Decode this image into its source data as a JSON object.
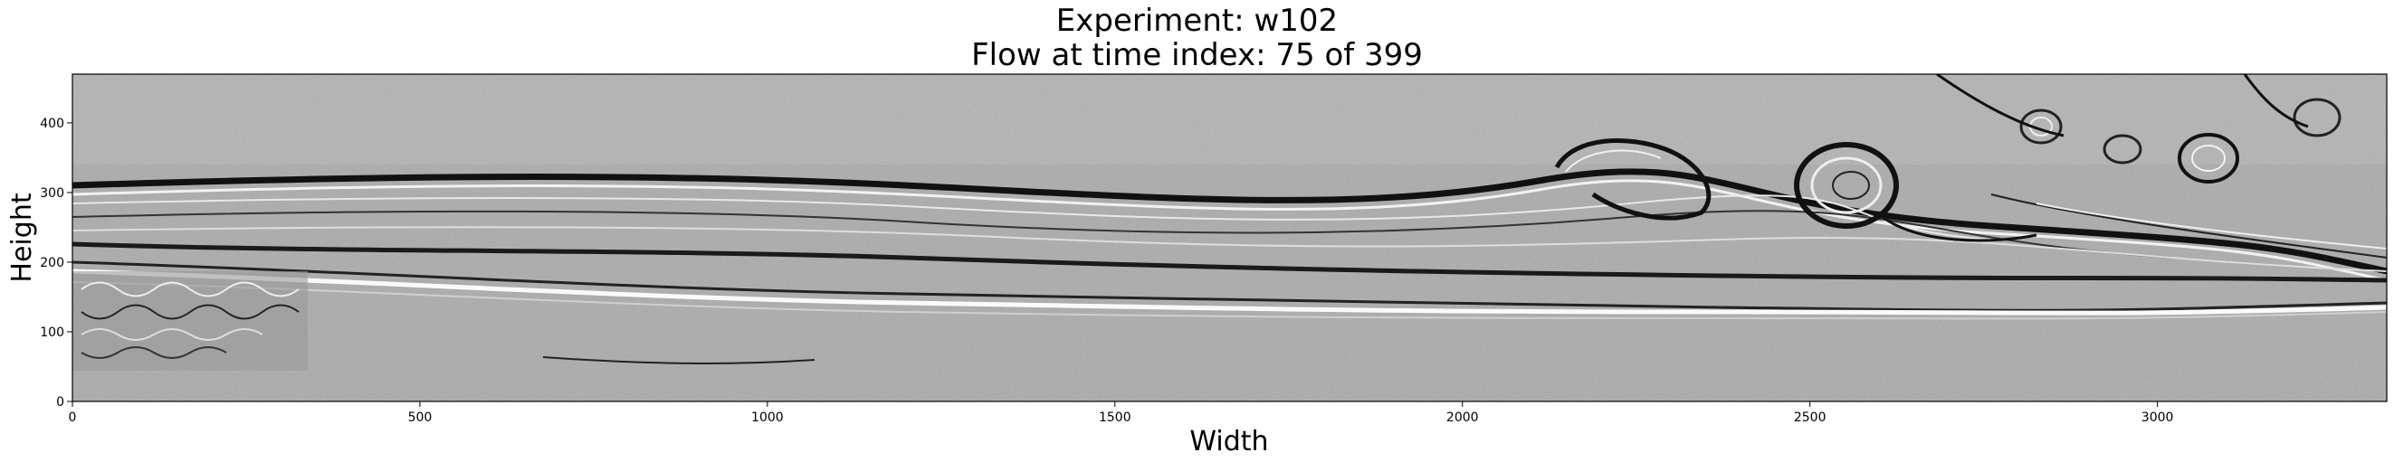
{
  "figure": {
    "title_line1": "Experiment: w102",
    "title_line2": "Flow at time index: 75 of 399"
  },
  "chart_data": {
    "type": "heatmap",
    "colormap": "grayscale",
    "xlabel": "Width",
    "ylabel": "Height",
    "xlim": [
      0,
      3330
    ],
    "ylim": [
      0,
      470
    ],
    "x_ticks": [
      0,
      500,
      1000,
      1500,
      2000,
      2500,
      3000
    ],
    "y_ticks": [
      0,
      100,
      200,
      300,
      400
    ],
    "grid": false
  }
}
